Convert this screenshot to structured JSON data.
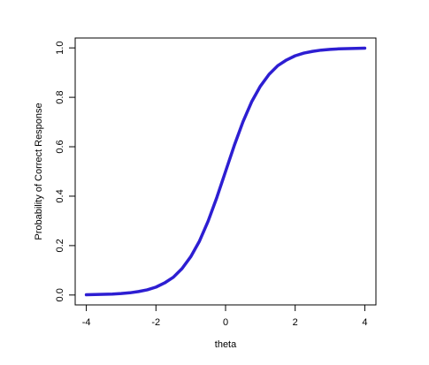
{
  "chart_data": {
    "type": "line",
    "x_label": "theta",
    "y_label": "Probability of Correct Response",
    "x": [
      -4,
      -3.75,
      -3.5,
      -3.25,
      -3,
      -2.75,
      -2.5,
      -2.25,
      -2,
      -1.75,
      -1.5,
      -1.25,
      -1,
      -0.75,
      -0.5,
      -0.25,
      0,
      0.25,
      0.5,
      0.75,
      1,
      1.25,
      1.5,
      1.75,
      2,
      2.25,
      2.5,
      2.75,
      3,
      3.25,
      3.5,
      3.75,
      4
    ],
    "series": [
      {
        "color": "#2d1ed2",
        "values": [
          0.001,
          0.002,
          0.003,
          0.004,
          0.006,
          0.009,
          0.014,
          0.021,
          0.032,
          0.049,
          0.072,
          0.107,
          0.155,
          0.218,
          0.299,
          0.395,
          0.5,
          0.605,
          0.701,
          0.782,
          0.845,
          0.893,
          0.928,
          0.951,
          0.968,
          0.979,
          0.986,
          0.991,
          0.994,
          0.996,
          0.997,
          0.998,
          0.999
        ]
      }
    ],
    "xlim": [
      -4.32,
      4.32
    ],
    "ylim": [
      -0.04,
      1.04
    ],
    "xticks": [
      -4,
      -2,
      0,
      2,
      4
    ],
    "yticks": [
      {
        "value": 0,
        "label": "0.0"
      },
      0.2,
      0.4,
      0.6,
      0.8,
      {
        "value": 1,
        "label": "1.0"
      }
    ]
  }
}
